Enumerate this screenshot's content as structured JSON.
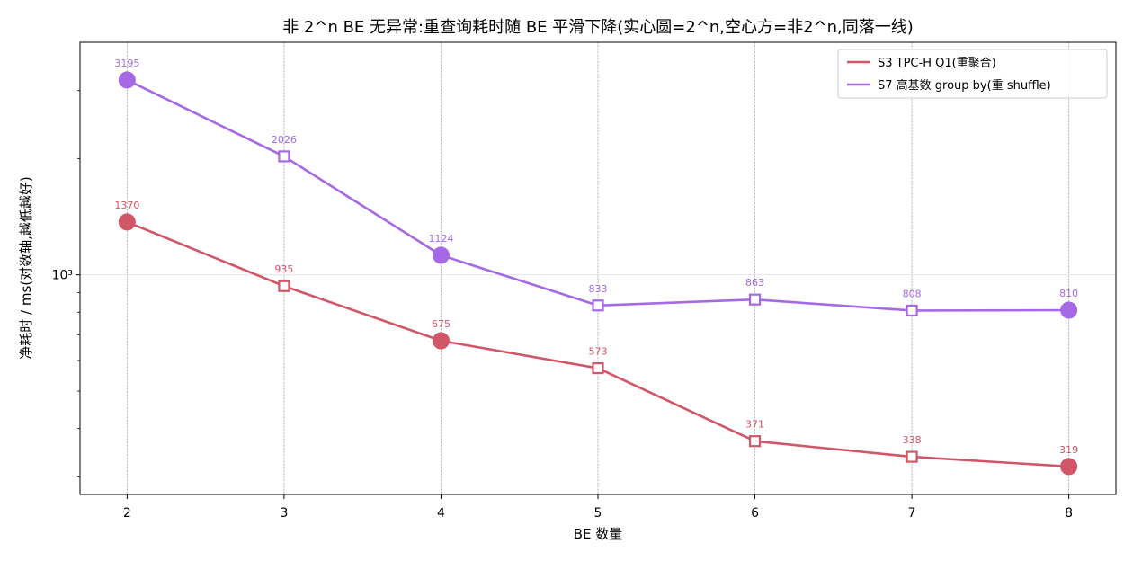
{
  "chart_data": {
    "type": "line",
    "title": "非 2^n BE 无异常:重查询耗时随 BE 平滑下降(实心圆=2^n,空心方=非2^n,同落一线)",
    "xlabel": "BE 数量",
    "ylabel": "净耗时 / ms(对数轴,越低越好)",
    "y_scale": "log",
    "y_tick_labels": [
      {
        "value": 1000,
        "label": "10³"
      }
    ],
    "ylim": [
      270,
      4000
    ],
    "xlim": [
      1.7,
      8.3
    ],
    "x": [
      2,
      3,
      4,
      5,
      6,
      7,
      8
    ],
    "x_tick_labels": [
      "2",
      "3",
      "4",
      "5",
      "6",
      "7",
      "8"
    ],
    "marker_rule": {
      "power_of_two": "filled-circle",
      "other": "hollow-square"
    },
    "grid": true,
    "legend_position": "top-right",
    "series": [
      {
        "name": "S3 TPC-H Q1(重聚合)",
        "color": "#d05668",
        "values": [
          1370,
          935,
          675,
          573,
          371,
          338,
          319
        ],
        "labels": [
          "1370",
          "935",
          "675",
          "573",
          "371",
          "338",
          "319"
        ]
      },
      {
        "name": "S7 高基数 group by(重 shuffle)",
        "color": "#a569e6",
        "values": [
          3195,
          2026,
          1124,
          833,
          863,
          808,
          810
        ],
        "labels": [
          "3195",
          "2026",
          "1124",
          "833",
          "863",
          "808",
          "810"
        ]
      }
    ]
  }
}
